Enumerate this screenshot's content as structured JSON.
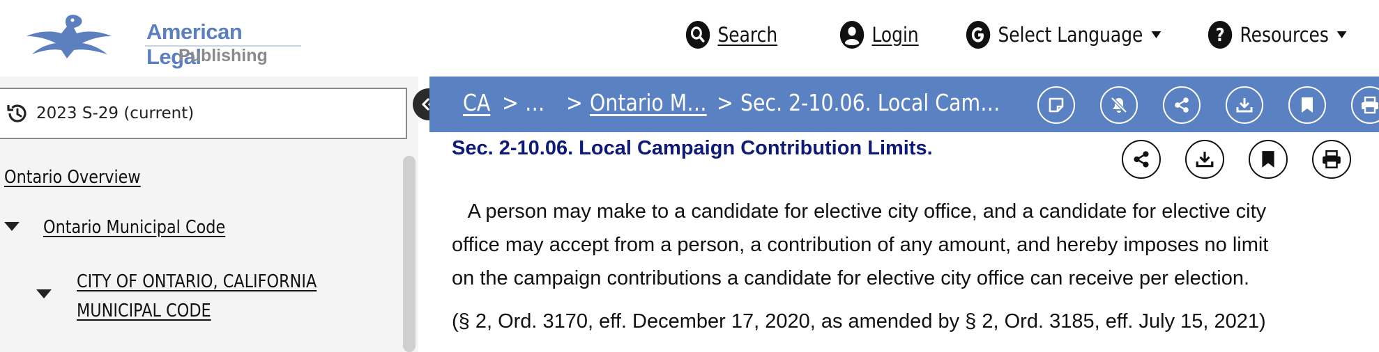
{
  "logo": {
    "line1": "American Legal",
    "line2": "Publishing"
  },
  "header_nav": {
    "search": "Search",
    "login": "Login",
    "language": "Select Language",
    "resources": "Resources"
  },
  "sidebar": {
    "version": "2023 S-29 (current)",
    "tree": [
      {
        "label": "Ontario Overview"
      },
      {
        "label": "Ontario Municipal Code"
      },
      {
        "label_line1": "CITY OF ONTARIO, CALIFORNIA",
        "label_line2": "MUNICIPAL CODE"
      }
    ]
  },
  "breadcrumb": {
    "items": [
      "CA",
      ">",
      "…",
      ">",
      "Ontario M…",
      ">",
      "Sec. 2-10.06. Local Cam…"
    ]
  },
  "toolbar_icons": [
    "annotation-icon",
    "notifications-off-icon",
    "share-icon",
    "download-icon",
    "bookmark-icon",
    "print-icon"
  ],
  "section": {
    "title": "Sec. 2-10.06. Local Campaign Contribution Limits.",
    "paragraph_lines": [
      "   A person may make to a candidate for elective city office, and a candidate for elective city",
      "office may accept from a person, a contribution of any amount, and hereby imposes no limit",
      "on the campaign contributions a candidate for elective city office can receive per election."
    ],
    "history": "(§ 2, Ord. 3170, eff. December 17, 2020, as amended by § 2, Ord. 3185, eff. July 15, 2021)"
  },
  "colors": {
    "brand_blue": "#5a81c2",
    "title_navy": "#0e1a7a",
    "logo_blue": "#5b7fbf"
  }
}
